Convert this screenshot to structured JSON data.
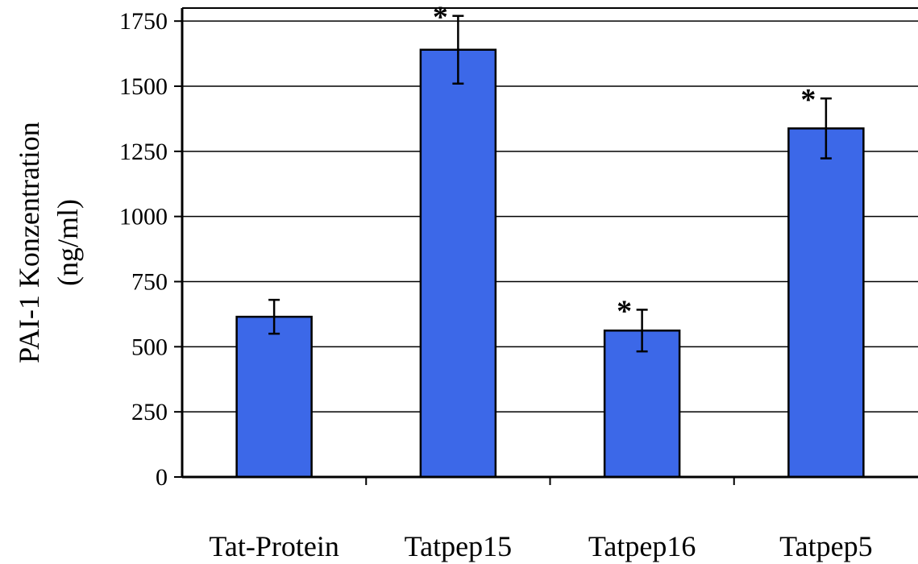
{
  "chart_data": {
    "type": "bar",
    "title": "",
    "xlabel": "",
    "ylabel_lines": [
      "PAI-1 Konzentration",
      "(ng/ml)"
    ],
    "ylim": [
      0,
      1800
    ],
    "yticks": [
      0,
      250,
      500,
      750,
      1000,
      1250,
      1500,
      1750
    ],
    "grid": "horizontal",
    "legend": "none",
    "categories": [
      "Tat-Protein",
      "Tatpep15",
      "Tatpep16",
      "Tatpep5"
    ],
    "values": [
      615,
      1640,
      562,
      1338
    ],
    "error": [
      65,
      130,
      80,
      115
    ],
    "annotations": [
      "",
      "*",
      "*",
      "*"
    ],
    "colors": {
      "bar_fill": "#3C68E8",
      "bar_stroke": "#000000",
      "grid": "#000000",
      "background": "#ffffff"
    }
  }
}
